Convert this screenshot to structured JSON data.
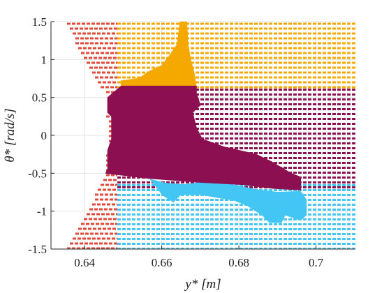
{
  "chart_data": {
    "type": "heatmap",
    "title": "",
    "xlabel": "y* [m]",
    "ylabel": "θ̇* [rad/s]",
    "xlim": [
      0.6313,
      0.7102
    ],
    "ylim": [
      -1.5,
      1.5
    ],
    "x_ticks": [
      0.64,
      0.66,
      0.68,
      0.7
    ],
    "x_tick_labels": [
      "0.64",
      "0.66",
      "0.68",
      "0.7"
    ],
    "y_ticks": [
      -1.5,
      -1,
      -0.5,
      0,
      0.5,
      1,
      1.5
    ],
    "y_tick_labels": [
      "-1.5",
      "-1",
      "-0.5",
      "0",
      "0.5",
      "1",
      "1.5"
    ],
    "grid": true,
    "legend": "none",
    "colors": {
      "dark_red": "#8B0F51",
      "orange": "#F5A800",
      "light_blue": "#44C6F5",
      "red": "#E04A3A",
      "grid": "#e3e3e3",
      "axis": "#262626"
    },
    "regions": {
      "red_dashed": {
        "style": "dashed",
        "color": "#E04A3A",
        "left_boundary": [
          [
            1.5,
            0.6354
          ],
          [
            1.25,
            0.6376
          ],
          [
            1.0,
            0.6404
          ],
          [
            0.65,
            0.6442
          ],
          [
            0.5,
            0.6462
          ],
          [
            0.25,
            0.6459
          ],
          [
            0.0,
            0.6464
          ],
          [
            -0.25,
            0.6459
          ],
          [
            -0.5,
            0.6455
          ],
          [
            -0.65,
            0.6442
          ],
          [
            -1.0,
            0.6409
          ],
          [
            -1.25,
            0.6382
          ],
          [
            -1.5,
            0.6354
          ]
        ],
        "right_boundary": 0.6485
      },
      "orange_dashed": {
        "style": "dashed",
        "color": "#F5A800",
        "x_range": [
          0.6485,
          0.7102
        ],
        "y_range": [
          0.63,
          1.5
        ]
      },
      "dark_red_dashed": {
        "style": "dashed",
        "color": "#8B0F51",
        "x_range": [
          0.6485,
          0.7102
        ],
        "y_range": [
          -0.75,
          0.63
        ]
      },
      "light_blue_dashed": {
        "style": "dashed",
        "color": "#44C6F5",
        "x_range": [
          0.6485,
          0.7102
        ],
        "y_range": [
          -1.5,
          -0.63
        ]
      },
      "orange_solid": {
        "style": "solid",
        "color": "#F5A800",
        "outline": [
          [
            0.6495,
            0.62
          ],
          [
            0.6495,
            0.72
          ],
          [
            0.654,
            0.75
          ],
          [
            0.657,
            0.85
          ],
          [
            0.66,
            0.92
          ],
          [
            0.662,
            1.05
          ],
          [
            0.664,
            1.2
          ],
          [
            0.6648,
            1.5
          ],
          [
            0.6665,
            1.5
          ],
          [
            0.6668,
            1.2
          ],
          [
            0.6675,
            1.0
          ],
          [
            0.6685,
            0.8
          ],
          [
            0.669,
            0.63
          ],
          [
            0.669,
            0.62
          ]
        ]
      },
      "dark_red_solid": {
        "style": "solid",
        "color": "#8B0F51",
        "outline": [
          [
            0.6455,
            -0.5
          ],
          [
            0.646,
            -0.45
          ],
          [
            0.646,
            -0.2
          ],
          [
            0.647,
            -0.05
          ],
          [
            0.647,
            0.25
          ],
          [
            0.646,
            0.3
          ],
          [
            0.646,
            0.5
          ],
          [
            0.6495,
            0.65
          ],
          [
            0.669,
            0.65
          ],
          [
            0.669,
            0.55
          ],
          [
            0.67,
            0.4
          ],
          [
            0.668,
            0.3
          ],
          [
            0.669,
            0.1
          ],
          [
            0.6705,
            -0.05
          ],
          [
            0.676,
            -0.15
          ],
          [
            0.6845,
            -0.25
          ],
          [
            0.6885,
            -0.35
          ],
          [
            0.6935,
            -0.5
          ],
          [
            0.696,
            -0.55
          ],
          [
            0.696,
            -0.72
          ],
          [
            0.689,
            -0.7
          ],
          [
            0.681,
            -0.65
          ],
          [
            0.67,
            -0.62
          ],
          [
            0.665,
            -0.6
          ],
          [
            0.657,
            -0.57
          ]
        ]
      },
      "light_blue_solid": {
        "style": "solid",
        "color": "#44C6F5",
        "outline": [
          [
            0.657,
            -0.58
          ],
          [
            0.661,
            -0.63
          ],
          [
            0.666,
            -0.65
          ],
          [
            0.67,
            -0.62
          ],
          [
            0.678,
            -0.65
          ],
          [
            0.685,
            -0.72
          ],
          [
            0.69,
            -0.75
          ],
          [
            0.696,
            -0.74
          ],
          [
            0.6975,
            -0.85
          ],
          [
            0.6975,
            -1.05
          ],
          [
            0.696,
            -1.12
          ],
          [
            0.692,
            -1.05
          ],
          [
            0.691,
            -1.15
          ],
          [
            0.688,
            -1.15
          ],
          [
            0.686,
            -1.05
          ],
          [
            0.682,
            -0.92
          ],
          [
            0.679,
            -0.86
          ],
          [
            0.67,
            -0.78
          ],
          [
            0.665,
            -0.78
          ],
          [
            0.663,
            -0.88
          ],
          [
            0.66,
            -0.78
          ],
          [
            0.659,
            -0.7
          ]
        ]
      }
    }
  }
}
